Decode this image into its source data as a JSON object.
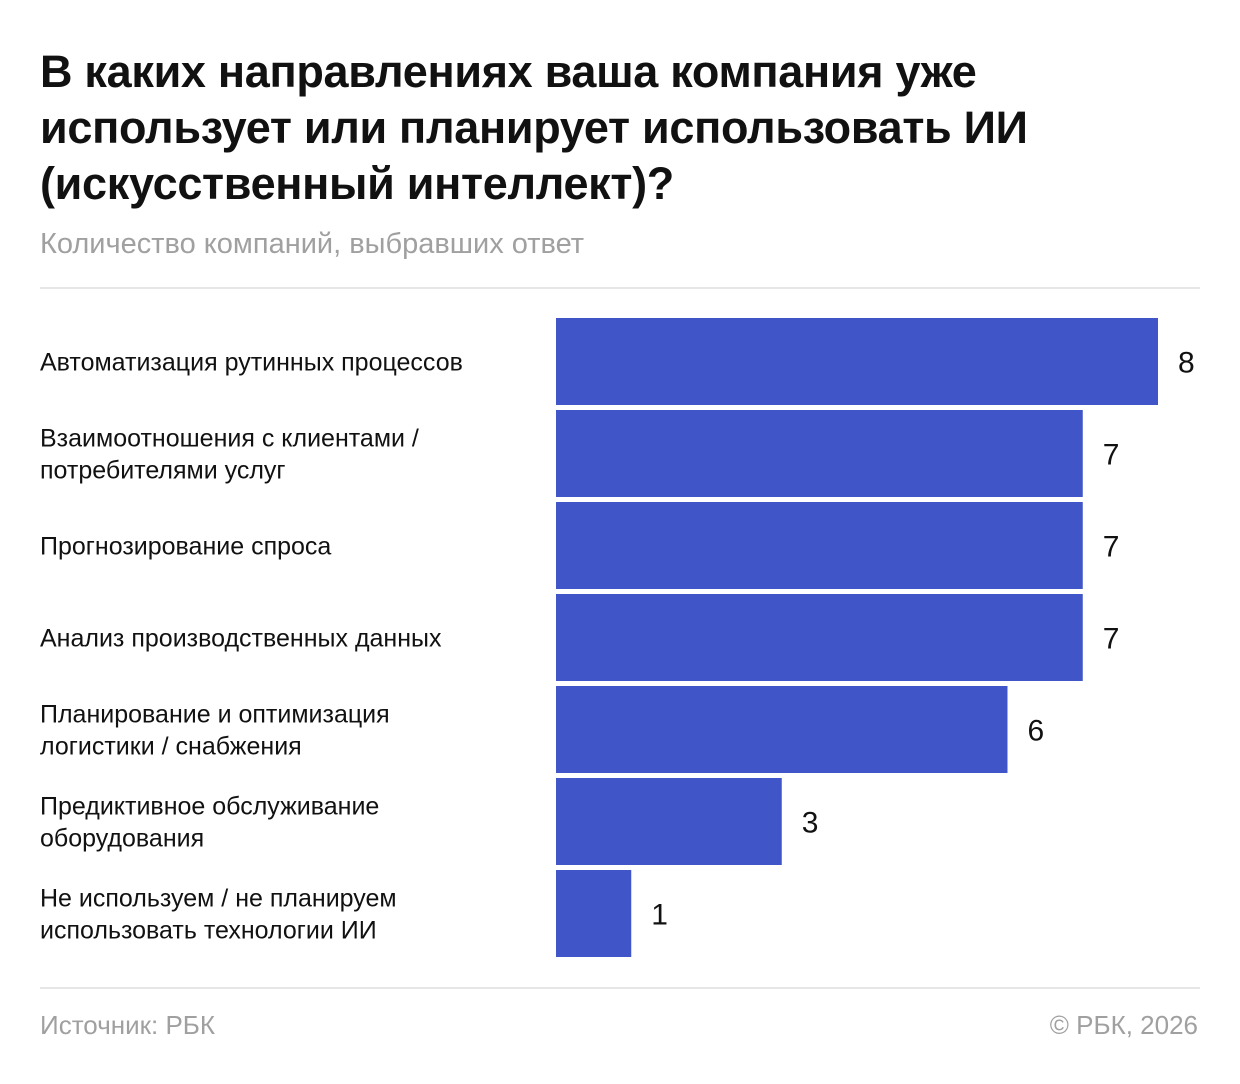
{
  "header": {
    "title": "В каких направлениях ваша компания уже использует или планирует использовать ИИ (искусственный интеллект)?",
    "subtitle": "Количество компаний, выбравших ответ"
  },
  "footer": {
    "source": "Источник: РБК",
    "copyright": "© РБК, 2026"
  },
  "colors": {
    "bar": "#4055c8",
    "text": "#111111",
    "muted": "#a0a0a0"
  },
  "chart_data": {
    "type": "bar",
    "orientation": "horizontal",
    "categories": [
      "Автоматизация рутинных процессов",
      "Взаимоотношения с клиентами / потребителями услуг",
      "Прогнозирование спроса",
      "Анализ производственных данных",
      "Планирование и оптимизация логистики / снабжения",
      "Предиктивное обслуживание оборудования",
      "Не используем / не планируем использовать технологии ИИ"
    ],
    "category_lines": [
      [
        "Автоматизация рутинных процессов"
      ],
      [
        "Взаимоотношения с клиентами /",
        "потребителями услуг"
      ],
      [
        "Прогнозирование спроса"
      ],
      [
        "Анализ производственных данных"
      ],
      [
        "Планирование и оптимизация",
        "логистики / снабжения"
      ],
      [
        "Предиктивное обслуживание",
        "оборудования"
      ],
      [
        "Не используем / не планируем",
        "использовать технологии ИИ"
      ]
    ],
    "values": [
      8,
      7,
      7,
      7,
      6,
      3,
      1
    ],
    "data_labels": [
      "8",
      "7",
      "7",
      "7",
      "6",
      "3",
      "1"
    ],
    "xlim": [
      0,
      8
    ],
    "grid": false,
    "legend": "none"
  }
}
